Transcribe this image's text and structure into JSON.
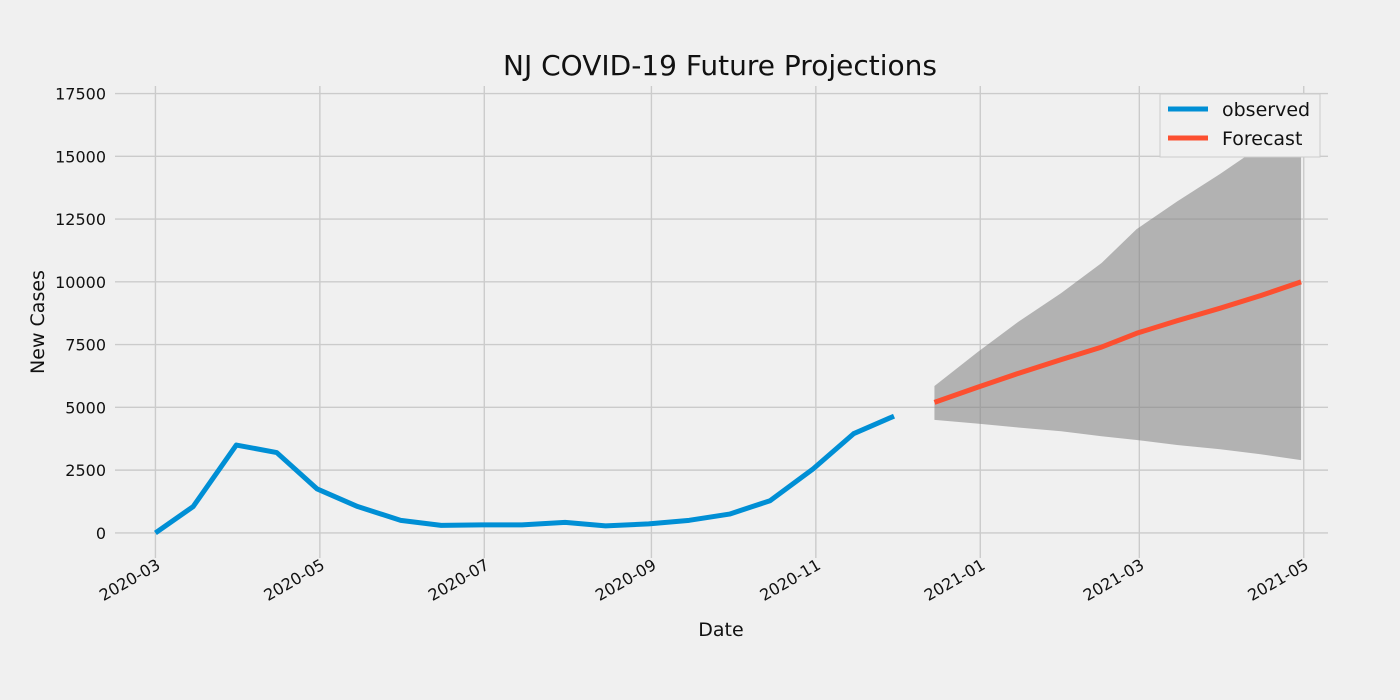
{
  "chart_data": {
    "type": "line",
    "title": "NJ COVID-19 Future Projections",
    "xlabel": "Date",
    "ylabel": "New Cases",
    "x_axis_type": "date",
    "xlim": [
      "2020-02-15",
      "2021-05-10"
    ],
    "ylim": [
      -1000,
      17800
    ],
    "grid": true,
    "legend_position": "top-right",
    "x_ticks": [
      "2020-03",
      "2020-05",
      "2020-07",
      "2020-09",
      "2020-11",
      "2021-01",
      "2021-03",
      "2021-05"
    ],
    "y_ticks": [
      0,
      2500,
      5000,
      7500,
      10000,
      12500,
      15000,
      17500
    ],
    "series": [
      {
        "name": "observed",
        "color": "#008fd5",
        "x": [
          "2020-03-01",
          "2020-03-15",
          "2020-03-31",
          "2020-04-15",
          "2020-04-30",
          "2020-05-15",
          "2020-05-31",
          "2020-06-15",
          "2020-06-30",
          "2020-07-15",
          "2020-07-31",
          "2020-08-15",
          "2020-08-31",
          "2020-09-15",
          "2020-09-30",
          "2020-10-15",
          "2020-10-31",
          "2020-11-15",
          "2020-11-30"
        ],
        "y": [
          0,
          1050,
          3500,
          3200,
          1750,
          1050,
          500,
          300,
          320,
          320,
          420,
          280,
          360,
          500,
          750,
          1280,
          2550,
          3950,
          4650
        ]
      },
      {
        "name": "Forecast",
        "color": "#fc4f30",
        "x": [
          "2020-12-15",
          "2020-12-31",
          "2021-01-15",
          "2021-01-31",
          "2021-02-15",
          "2021-02-28",
          "2021-03-15",
          "2021-03-31",
          "2021-04-15",
          "2021-04-30"
        ],
        "y": [
          5200,
          5800,
          6350,
          6900,
          7400,
          7950,
          8450,
          8950,
          9450,
          10000
        ]
      }
    ],
    "confidence_interval": {
      "color": "#808080",
      "x": [
        "2020-12-15",
        "2020-12-31",
        "2021-01-15",
        "2021-01-31",
        "2021-02-15",
        "2021-02-28",
        "2021-03-15",
        "2021-03-31",
        "2021-04-15",
        "2021-04-30"
      ],
      "upper": [
        5850,
        7200,
        8400,
        9550,
        10750,
        12100,
        13200,
        14300,
        15400,
        16600
      ],
      "lower": [
        4500,
        4350,
        4200,
        4050,
        3850,
        3700,
        3500,
        3330,
        3130,
        2900
      ]
    }
  }
}
